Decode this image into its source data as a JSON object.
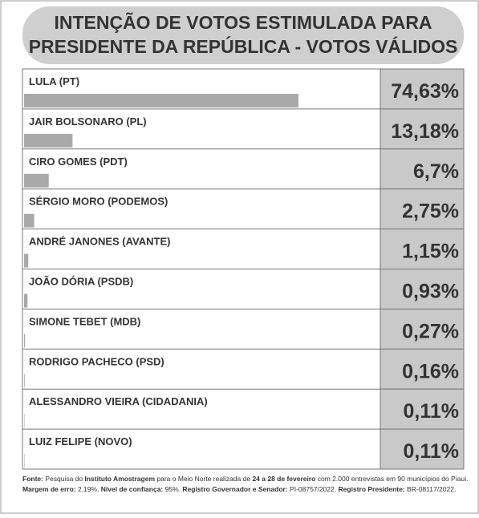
{
  "chart_data": {
    "type": "bar",
    "title": [
      "INTENÇÃO DE VOTOS ESTIMULADA PARA",
      "PRESIDENTE DA REPÚBLICA - VOTOS VÁLIDOS"
    ],
    "categories": [
      "LULA (PT)",
      "JAIR BOLSONARO (PL)",
      "CIRO GOMES (PDT)",
      "SÉRGIO MORO (PODEMOS)",
      "ANDRÉ JANONES (AVANTE)",
      "JOÃO DÓRIA (PSDB)",
      "SIMONE TEBET (MDB)",
      "RODRIGO PACHECO (PSD)",
      "ALESSANDRO VIEIRA (CIDADANIA)",
      "LUIZ FELIPE (NOVO)"
    ],
    "values": [
      74.63,
      13.18,
      6.7,
      2.75,
      1.15,
      0.93,
      0.27,
      0.16,
      0.11,
      0.11
    ],
    "value_labels": [
      "74,63%",
      "13,18%",
      "6,7%",
      "2,75%",
      "1,15%",
      "0,93%",
      "0,27%",
      "0,16%",
      "0,11%",
      "0,11%"
    ],
    "color": "#a9a9a9",
    "footnote": [
      [
        {
          "text": "Fonte:",
          "bold": true
        },
        {
          "text": " Pesquisa do ",
          "bold": false
        },
        {
          "text": "Instituto Amostragem",
          "bold": true
        },
        {
          "text": " para o Meio Norte realizada de ",
          "bold": false
        },
        {
          "text": "24 a 28 de fevereiro",
          "bold": true
        },
        {
          "text": " com 2.000 entrevistas em 90 municípios do Piauí.",
          "bold": false
        }
      ],
      [
        {
          "text": "Margem de erro:",
          "bold": true
        },
        {
          "text": " 2,19%. ",
          "bold": false
        },
        {
          "text": "Nível de confiança:",
          "bold": true
        },
        {
          "text": " 95%. ",
          "bold": false
        },
        {
          "text": "Registro Governador e Senador:",
          "bold": true
        },
        {
          "text": " PI-08757/2022. ",
          "bold": false
        },
        {
          "text": "Registro Presidente:",
          "bold": true
        },
        {
          "text": " BR-08117/2022.",
          "bold": false
        }
      ]
    ]
  }
}
